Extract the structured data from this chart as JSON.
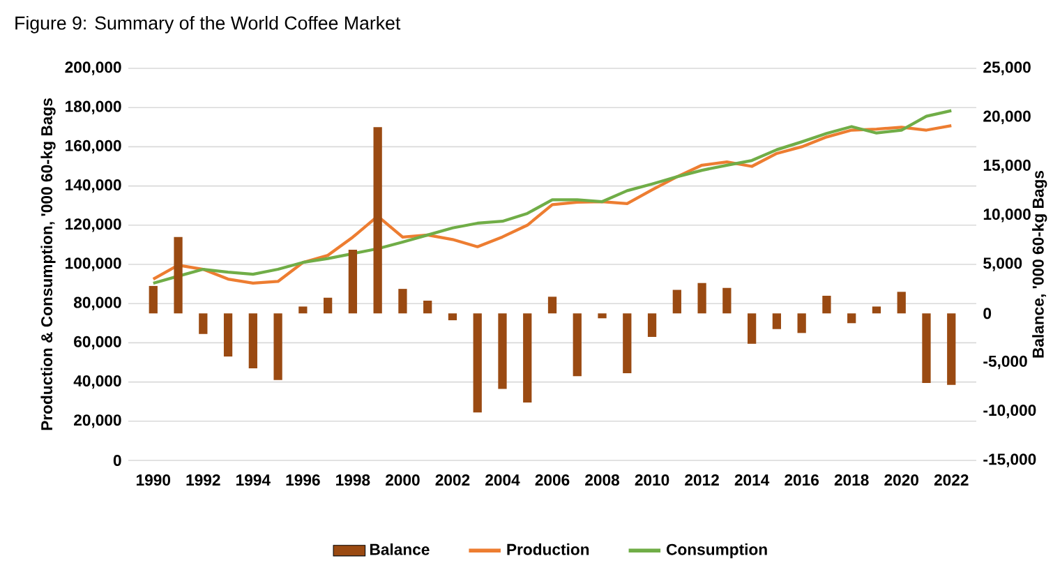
{
  "chart_data": {
    "type": "line",
    "title": "Figure 9: Summary of the World Coffee Market",
    "ylabel": "Production & Consumption, '000 60-kg Bags",
    "y2label": "Balance, '000 60-kg Bags",
    "x": [
      1990,
      1991,
      1992,
      1993,
      1994,
      1995,
      1996,
      1997,
      1998,
      1999,
      2000,
      2001,
      2002,
      2003,
      2004,
      2005,
      2006,
      2007,
      2008,
      2009,
      2010,
      2011,
      2012,
      2013,
      2014,
      2015,
      2016,
      2017,
      2018,
      2019,
      2020,
      2021,
      2022
    ],
    "xlim": [
      1989,
      2023
    ],
    "xticks": [
      1990,
      1992,
      1994,
      1996,
      1998,
      2000,
      2002,
      2004,
      2006,
      2008,
      2010,
      2012,
      2014,
      2016,
      2018,
      2020,
      2022
    ],
    "ylim": [
      0,
      200000
    ],
    "yticks": [
      0,
      {
        "value": 20000,
        "label": "20,000"
      },
      {
        "value": 40000,
        "label": "40,000"
      },
      {
        "value": 60000,
        "label": "60,000"
      },
      {
        "value": 80000,
        "label": "80,000"
      },
      {
        "value": 100000,
        "label": "100,000"
      },
      {
        "value": 120000,
        "label": "120,000"
      },
      {
        "value": 140000,
        "label": "140,000"
      },
      {
        "value": 160000,
        "label": "160,000"
      },
      {
        "value": 180000,
        "label": "180,000"
      },
      {
        "value": 200000,
        "label": "200,000"
      }
    ],
    "y2lim": [
      -15000,
      25000
    ],
    "y2ticks": [
      {
        "value": -15000,
        "label": "-15,000"
      },
      {
        "value": -10000,
        "label": "-10,000"
      },
      {
        "value": -5000,
        "label": "-5,000"
      },
      0,
      {
        "value": 5000,
        "label": "5,000"
      },
      {
        "value": 10000,
        "label": "10,000"
      },
      {
        "value": 15000,
        "label": "15,000"
      },
      {
        "value": 20000,
        "label": "20,000"
      },
      {
        "value": 25000,
        "label": "25,000"
      }
    ],
    "series": [
      {
        "name": "Balance",
        "type": "bar",
        "axis": "y2",
        "color": "#9a4a12",
        "values": [
          2800,
          7800,
          -2100,
          -4400,
          -5600,
          -6800,
          700,
          1600,
          6500,
          19000,
          2500,
          1300,
          -700,
          -10100,
          -7700,
          -9100,
          1700,
          -6400,
          -500,
          -6100,
          -2400,
          2400,
          3100,
          2600,
          -3100,
          -1600,
          -2000,
          1800,
          -1000,
          700,
          2200,
          -7100,
          -7300
        ]
      },
      {
        "name": "Production",
        "color": "#ed7d31",
        "values": [
          92500,
          99600,
          97500,
          92500,
          90400,
          91300,
          101000,
          104600,
          113900,
          124600,
          113900,
          115000,
          112700,
          109000,
          114000,
          120000,
          130500,
          131700,
          132000,
          131000,
          138000,
          144700,
          150600,
          152300,
          150000,
          156600,
          160000,
          165000,
          168500,
          169000,
          170000,
          168500,
          170800
        ]
      },
      {
        "name": "Consumption",
        "color": "#70ad47",
        "values": [
          90400,
          94000,
          97500,
          96000,
          95000,
          97500,
          101000,
          103000,
          105500,
          108000,
          111400,
          115000,
          118600,
          121000,
          122000,
          126000,
          133000,
          133000,
          132000,
          137600,
          141000,
          144700,
          148000,
          150600,
          153000,
          158500,
          162500,
          166800,
          170300,
          167000,
          168500,
          175600,
          178400
        ]
      }
    ],
    "grid": "y",
    "legend": "bottom"
  }
}
